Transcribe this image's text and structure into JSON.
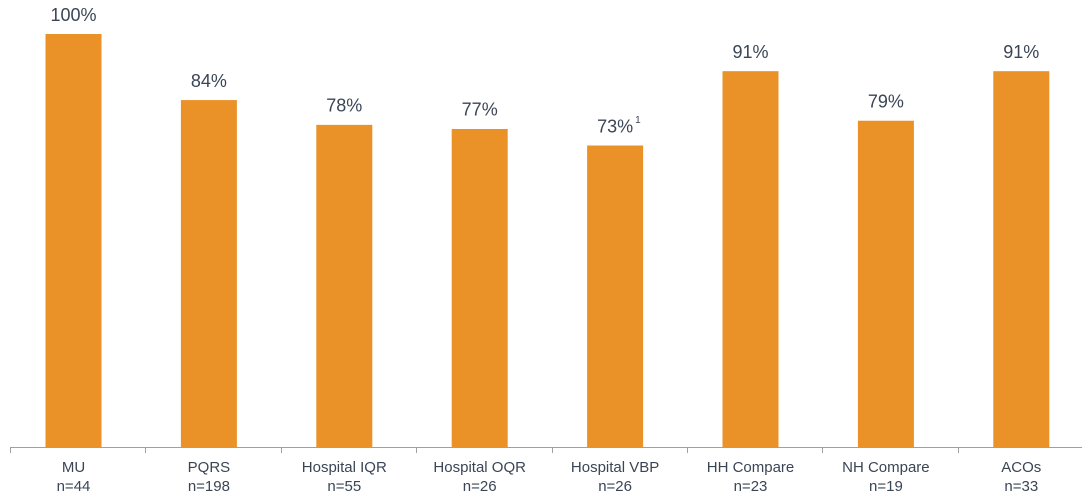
{
  "chart_data": {
    "type": "bar",
    "categories": [
      "MU",
      "PQRS",
      "Hospital IQR",
      "Hospital OQR",
      "Hospital VBP",
      "HH Compare",
      "NH Compare",
      "ACOs"
    ],
    "sample_sizes": [
      "n=44",
      "n=198",
      "n=55",
      "n=26",
      "n=26",
      "n=23",
      "n=19",
      "n=33"
    ],
    "values": [
      100,
      84,
      78,
      77,
      73,
      91,
      79,
      91
    ],
    "value_labels": [
      "100%",
      "84%",
      "78%",
      "77%",
      "73%",
      "91%",
      "79%",
      "91%"
    ],
    "value_footnotes": [
      null,
      null,
      null,
      null,
      "1",
      null,
      null,
      null
    ],
    "color": "#ea9228",
    "ylim": [
      0,
      100
    ]
  }
}
